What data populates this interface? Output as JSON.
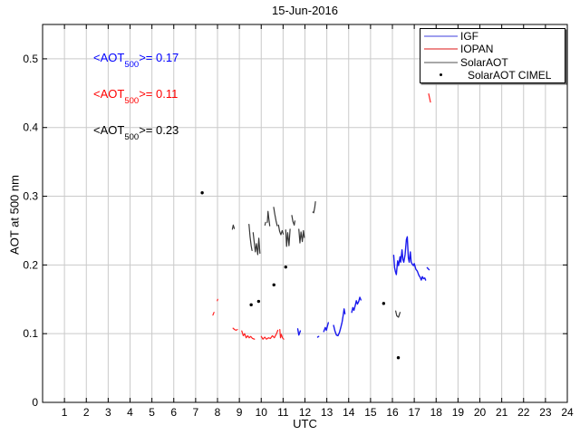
{
  "chart_data": {
    "type": "line",
    "title": "15-Jun-2016",
    "xlabel": "UTC",
    "ylabel": "AOT at 500 nm",
    "xlim": [
      0,
      24
    ],
    "ylim": [
      0,
      0.55
    ],
    "xticks": [
      1,
      2,
      3,
      4,
      5,
      6,
      7,
      8,
      9,
      10,
      11,
      12,
      13,
      14,
      15,
      16,
      17,
      18,
      19,
      20,
      21,
      22,
      23,
      24
    ],
    "yticks": [
      0,
      0.1,
      0.2,
      0.3,
      0.4,
      0.5
    ],
    "ytick_labels": [
      "0",
      "0.1",
      "0.2",
      "0.3",
      "0.4",
      "0.5"
    ],
    "grid": true,
    "grid_color": "#cacaca",
    "axis_color": "#000000",
    "legend": {
      "position": "top-right",
      "entries": [
        {
          "label": "IGF",
          "kind": "line",
          "sample_color": "#9f9fee"
        },
        {
          "label": "IOPAN",
          "kind": "line",
          "sample_color": "#ee8a8a"
        },
        {
          "label": "SolarAOT",
          "kind": "line",
          "sample_color": "#a8a8a8"
        },
        {
          "label": "SolarAOT CIMEL",
          "kind": "marker",
          "sample_color": "#000000"
        }
      ]
    },
    "annotations": [
      {
        "pre": "<AOT",
        "sub": "500",
        "post": ">= 0.17",
        "color": "#0000ff"
      },
      {
        "pre": "<AOT",
        "sub": "500",
        "post": ">= 0.11",
        "color": "#ff0000"
      },
      {
        "pre": "<AOT",
        "sub": "500",
        "post": ">= 0.23",
        "color": "#000000"
      }
    ],
    "series": [
      {
        "name": "IGF",
        "color": "#1a1aee",
        "style": "line",
        "width": 1.4,
        "segments": [
          [
            [
              11.67,
              0.107
            ],
            [
              11.72,
              0.098
            ],
            [
              11.79,
              0.104
            ]
          ],
          [
            [
              12.58,
              0.095
            ],
            [
              12.63,
              0.096
            ]
          ],
          [
            [
              12.86,
              0.103
            ],
            [
              12.93,
              0.109
            ],
            [
              12.98,
              0.105
            ],
            [
              13.02,
              0.11
            ],
            [
              13.07,
              0.116
            ]
          ],
          [
            [
              13.31,
              0.112
            ],
            [
              13.37,
              0.104
            ],
            [
              13.44,
              0.098
            ],
            [
              13.51,
              0.097
            ],
            [
              13.58,
              0.102
            ],
            [
              13.64,
              0.109
            ],
            [
              13.7,
              0.117
            ],
            [
              13.75,
              0.127
            ],
            [
              13.79,
              0.136
            ],
            [
              13.83,
              0.129
            ]
          ],
          [
            [
              14.14,
              0.131
            ],
            [
              14.19,
              0.138
            ],
            [
              14.24,
              0.134
            ],
            [
              14.3,
              0.141
            ],
            [
              14.35,
              0.148
            ],
            [
              14.4,
              0.143
            ],
            [
              14.46,
              0.147
            ],
            [
              14.51,
              0.153
            ],
            [
              14.56,
              0.149
            ]
          ],
          [
            [
              16.06,
              0.214
            ],
            [
              16.1,
              0.196
            ],
            [
              16.14,
              0.19
            ],
            [
              16.18,
              0.186
            ],
            [
              16.24,
              0.206
            ],
            [
              16.28,
              0.199
            ],
            [
              16.35,
              0.212
            ],
            [
              16.38,
              0.204
            ],
            [
              16.44,
              0.222
            ],
            [
              16.48,
              0.208
            ],
            [
              16.52,
              0.204
            ],
            [
              16.58,
              0.215
            ],
            [
              16.64,
              0.237
            ],
            [
              16.68,
              0.241
            ],
            [
              16.73,
              0.21
            ],
            [
              16.77,
              0.204
            ],
            [
              16.82,
              0.219
            ],
            [
              16.86,
              0.204
            ],
            [
              16.91,
              0.201
            ],
            [
              16.96,
              0.199
            ],
            [
              17.0,
              0.202
            ],
            [
              17.07,
              0.194
            ],
            [
              17.14,
              0.191
            ],
            [
              17.21,
              0.185
            ],
            [
              17.27,
              0.182
            ],
            [
              17.32,
              0.178
            ],
            [
              17.37,
              0.183
            ],
            [
              17.42,
              0.18
            ],
            [
              17.48,
              0.181
            ],
            [
              17.52,
              0.178
            ]
          ],
          [
            [
              17.59,
              0.196
            ],
            [
              17.68,
              0.193
            ]
          ]
        ]
      },
      {
        "name": "IOPAN",
        "color": "#ff2020",
        "style": "line",
        "width": 1.2,
        "segments": [
          [
            [
              7.79,
              0.127
            ],
            [
              7.84,
              0.131
            ]
          ],
          [
            [
              7.99,
              0.148
            ],
            [
              8.01,
              0.15
            ]
          ],
          [
            [
              8.71,
              0.108
            ],
            [
              8.78,
              0.106
            ],
            [
              8.85,
              0.105
            ],
            [
              8.91,
              0.106
            ]
          ],
          [
            [
              9.11,
              0.104
            ],
            [
              9.18,
              0.097
            ],
            [
              9.24,
              0.1
            ],
            [
              9.31,
              0.094
            ],
            [
              9.38,
              0.097
            ],
            [
              9.45,
              0.094
            ],
            [
              9.52,
              0.096
            ],
            [
              9.6,
              0.093
            ],
            [
              9.69,
              0.092
            ]
          ],
          [
            [
              10.0,
              0.096
            ],
            [
              10.08,
              0.092
            ],
            [
              10.16,
              0.095
            ],
            [
              10.24,
              0.092
            ],
            [
              10.33,
              0.094
            ],
            [
              10.42,
              0.093
            ],
            [
              10.51,
              0.097
            ],
            [
              10.6,
              0.094
            ],
            [
              10.7,
              0.1
            ],
            [
              10.76,
              0.105
            ]
          ],
          [
            [
              10.85,
              0.106
            ],
            [
              10.88,
              0.094
            ],
            [
              10.92,
              0.099
            ],
            [
              10.97,
              0.094
            ],
            [
              11.03,
              0.092
            ]
          ],
          [
            [
              17.66,
              0.449
            ],
            [
              17.7,
              0.443
            ],
            [
              17.74,
              0.437
            ]
          ]
        ]
      },
      {
        "name": "SolarAOT",
        "color": "#383838",
        "style": "line",
        "width": 1.2,
        "segments": [
          [
            [
              8.68,
              0.252
            ],
            [
              8.72,
              0.258
            ],
            [
              8.77,
              0.253
            ]
          ],
          [
            [
              9.44,
              0.259
            ],
            [
              9.49,
              0.241
            ],
            [
              9.54,
              0.228
            ],
            [
              9.58,
              0.221
            ]
          ],
          [
            [
              9.63,
              0.247
            ],
            [
              9.68,
              0.233
            ],
            [
              9.73,
              0.219
            ],
            [
              9.78,
              0.231
            ],
            [
              9.84,
              0.215
            ],
            [
              9.89,
              0.239
            ],
            [
              9.94,
              0.217
            ]
          ],
          [
            [
              10.17,
              0.258
            ],
            [
              10.2,
              0.262
            ]
          ],
          [
            [
              10.28,
              0.262
            ],
            [
              10.31,
              0.278
            ],
            [
              10.35,
              0.267
            ],
            [
              10.39,
              0.257
            ]
          ],
          [
            [
              10.57,
              0.284
            ],
            [
              10.62,
              0.274
            ],
            [
              10.68,
              0.264
            ],
            [
              10.73,
              0.257
            ]
          ],
          [
            [
              10.79,
              0.258
            ],
            [
              10.84,
              0.249
            ],
            [
              10.9,
              0.244
            ],
            [
              10.96,
              0.25
            ],
            [
              11.01,
              0.245
            ]
          ],
          [
            [
              11.12,
              0.251
            ],
            [
              11.16,
              0.227
            ],
            [
              11.21,
              0.247
            ],
            [
              11.27,
              0.228
            ],
            [
              11.32,
              0.252
            ]
          ],
          [
            [
              11.4,
              0.272
            ],
            [
              11.45,
              0.263
            ],
            [
              11.51,
              0.258
            ],
            [
              11.54,
              0.264
            ]
          ],
          [
            [
              11.72,
              0.252
            ],
            [
              11.77,
              0.232
            ],
            [
              11.82,
              0.248
            ],
            [
              11.88,
              0.234
            ],
            [
              11.93,
              0.25
            ],
            [
              11.97,
              0.24
            ]
          ],
          [
            [
              12.36,
              0.277
            ],
            [
              12.4,
              0.276
            ],
            [
              12.45,
              0.284
            ],
            [
              12.48,
              0.292
            ]
          ],
          [
            [
              16.15,
              0.133
            ],
            [
              16.2,
              0.126
            ],
            [
              16.28,
              0.124
            ],
            [
              16.35,
              0.131
            ]
          ]
        ]
      },
      {
        "name": "SolarAOT CIMEL",
        "color": "#000000",
        "style": "scatter",
        "marker_radius": 1.7,
        "points": [
          [
            7.3,
            0.305
          ],
          [
            9.54,
            0.142
          ],
          [
            9.88,
            0.147
          ],
          [
            10.58,
            0.171
          ],
          [
            11.12,
            0.197
          ],
          [
            15.6,
            0.144
          ],
          [
            16.27,
            0.065
          ]
        ]
      }
    ]
  }
}
